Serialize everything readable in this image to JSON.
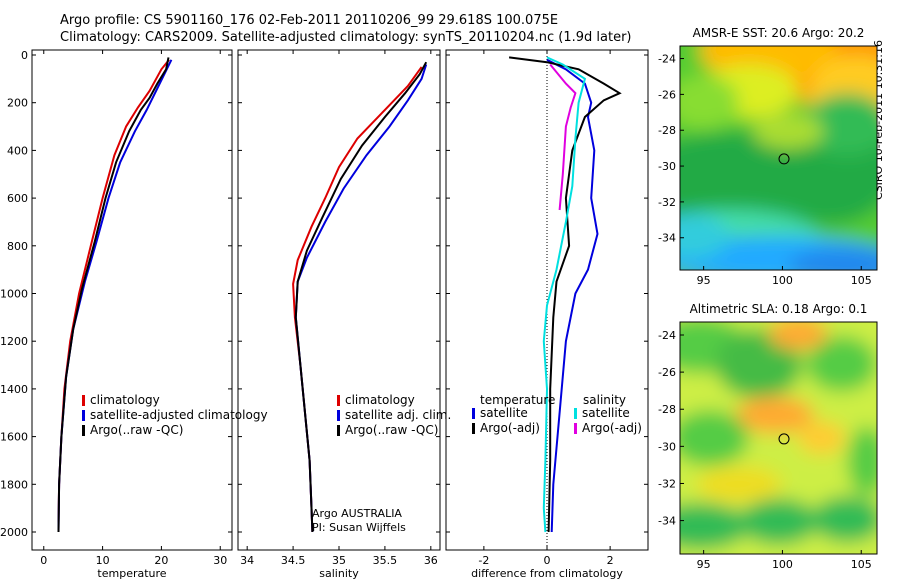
{
  "header": {
    "line1": "Argo profile: CS 5901160_176 02-Feb-2011 20110206_99 29.618S 100.075E",
    "line2": "Climatology: CARS2009. Satellite-adjusted climatology: synTS_20110204.nc (1.9d later)"
  },
  "footer_stamp": "CSIRO 10-Feb-2011 10:31:16",
  "colors": {
    "climatology": "#dd0000",
    "satellite": "#0000dd",
    "argo": "#000000",
    "sat_sal": "#00e0e0",
    "argo_sal": "#e000e0"
  },
  "chart_data": [
    {
      "type": "line",
      "id": "temperature",
      "xlabel": "temperature",
      "ylabel": "",
      "xlim": [
        -2,
        32
      ],
      "ylim": [
        2050,
        -30
      ],
      "xticks": [
        0,
        10,
        20,
        30
      ],
      "yticks": [
        0,
        200,
        400,
        600,
        800,
        1000,
        1200,
        1400,
        1600,
        1800,
        2000
      ],
      "legend": [
        "climatology",
        "satellite-adjusted climatology",
        "Argo(..raw -QC)"
      ],
      "series": [
        {
          "name": "climatology",
          "color": "#dd0000",
          "points": [
            [
              21.3,
              20
            ],
            [
              20,
              60
            ],
            [
              18,
              150
            ],
            [
              16,
              220
            ],
            [
              14,
              300
            ],
            [
              12,
              420
            ],
            [
              10,
              600
            ],
            [
              8,
              800
            ],
            [
              6,
              1000
            ],
            [
              4.5,
              1200
            ],
            [
              3.5,
              1400
            ],
            [
              3,
              1600
            ],
            [
              2.6,
              1800
            ],
            [
              2.5,
              1960
            ]
          ]
        },
        {
          "name": "satellite-adjusted climatology",
          "color": "#0000dd",
          "points": [
            [
              21.7,
              20
            ],
            [
              20.5,
              80
            ],
            [
              19.5,
              130
            ],
            [
              17.5,
              230
            ],
            [
              15.5,
              320
            ],
            [
              13,
              450
            ],
            [
              11,
              600
            ],
            [
              9,
              780
            ],
            [
              7,
              950
            ],
            [
              5,
              1150
            ],
            [
              3.8,
              1350
            ],
            [
              3,
              1600
            ],
            [
              2.6,
              1800
            ],
            [
              2.5,
              2000
            ]
          ]
        },
        {
          "name": "Argo(..raw -QC)",
          "color": "#000000",
          "points": [
            [
              21.2,
              10
            ],
            [
              20.8,
              60
            ],
            [
              19.3,
              120
            ],
            [
              18,
              180
            ],
            [
              16.5,
              230
            ],
            [
              14.5,
              320
            ],
            [
              12.3,
              450
            ],
            [
              10.5,
              600
            ],
            [
              8.7,
              780
            ],
            [
              6.5,
              980
            ],
            [
              5,
              1150
            ],
            [
              3.8,
              1350
            ],
            [
              3,
              1600
            ],
            [
              2.6,
              1800
            ],
            [
              2.5,
              2000
            ]
          ]
        }
      ]
    },
    {
      "type": "line",
      "id": "salinity",
      "xlabel": "salinity",
      "ylabel": "",
      "xlim": [
        33.9,
        36.1
      ],
      "ylim": [
        2050,
        -30
      ],
      "xticks": [
        34,
        34.5,
        35,
        35.5,
        36
      ],
      "legend": [
        "climatology",
        "satellite adj. clim.",
        "Argo(..raw -QC)"
      ],
      "note": [
        "Argo AUSTRALIA",
        "PI: Susan Wijffels"
      ],
      "series": [
        {
          "name": "climatology",
          "color": "#dd0000",
          "points": [
            [
              35.9,
              50
            ],
            [
              35.75,
              130
            ],
            [
              35.5,
              230
            ],
            [
              35.2,
              350
            ],
            [
              35,
              470
            ],
            [
              34.85,
              600
            ],
            [
              34.7,
              720
            ],
            [
              34.55,
              860
            ],
            [
              34.5,
              960
            ],
            [
              34.52,
              1100
            ],
            [
              34.58,
              1300
            ],
            [
              34.63,
              1500
            ],
            [
              34.68,
              1700
            ],
            [
              34.7,
              1900
            ],
            [
              34.71,
              2000
            ]
          ]
        },
        {
          "name": "satellite adj. clim.",
          "color": "#0000dd",
          "points": [
            [
              35.95,
              40
            ],
            [
              35.9,
              100
            ],
            [
              35.75,
              190
            ],
            [
              35.55,
              300
            ],
            [
              35.3,
              420
            ],
            [
              35.05,
              560
            ],
            [
              34.85,
              700
            ],
            [
              34.65,
              850
            ],
            [
              34.55,
              950
            ],
            [
              34.53,
              1100
            ],
            [
              34.58,
              1300
            ],
            [
              34.63,
              1500
            ],
            [
              34.68,
              1700
            ],
            [
              34.7,
              1900
            ],
            [
              34.71,
              2000
            ]
          ]
        },
        {
          "name": "Argo(..raw -QC)",
          "color": "#000000",
          "points": [
            [
              35.95,
              30
            ],
            [
              35.88,
              80
            ],
            [
              35.72,
              160
            ],
            [
              35.5,
              260
            ],
            [
              35.25,
              380
            ],
            [
              35.02,
              520
            ],
            [
              34.82,
              680
            ],
            [
              34.65,
              820
            ],
            [
              34.55,
              950
            ],
            [
              34.53,
              1100
            ],
            [
              34.58,
              1300
            ],
            [
              34.63,
              1500
            ],
            [
              34.68,
              1700
            ],
            [
              34.7,
              1900
            ],
            [
              34.71,
              2000
            ]
          ]
        }
      ]
    },
    {
      "type": "line",
      "id": "difference",
      "xlabel": "difference from climatology",
      "ylabel": "",
      "xlim": [
        -3.2,
        3.2
      ],
      "ylim": [
        2050,
        -30
      ],
      "xticks": [
        -2,
        0,
        2
      ],
      "legend_groups": [
        {
          "title": "temperature",
          "entries": [
            "satellite",
            "Argo(-adj)"
          ]
        },
        {
          "title": "salinity",
          "entries": [
            "satellite",
            "Argo(-adj)"
          ]
        }
      ],
      "series": [
        {
          "name": "temperature satellite",
          "color": "#0000dd",
          "points": [
            [
              0,
              20
            ],
            [
              0.6,
              60
            ],
            [
              1.2,
              120
            ],
            [
              1.4,
              200
            ],
            [
              1.3,
              260
            ],
            [
              1.5,
              400
            ],
            [
              1.4,
              600
            ],
            [
              1.6,
              750
            ],
            [
              1.3,
              900
            ],
            [
              0.9,
              1000
            ],
            [
              0.6,
              1200
            ],
            [
              0.4,
              1500
            ],
            [
              0.2,
              1800
            ],
            [
              0.15,
              2000
            ]
          ]
        },
        {
          "name": "temperature Argo(-adj)",
          "color": "#000000",
          "points": [
            [
              -1.2,
              10
            ],
            [
              0,
              30
            ],
            [
              1,
              60
            ],
            [
              1.8,
              120
            ],
            [
              2.3,
              160
            ],
            [
              1.8,
              190
            ],
            [
              1.2,
              260
            ],
            [
              0.8,
              400
            ],
            [
              0.6,
              600
            ],
            [
              0.7,
              800
            ],
            [
              0.3,
              950
            ],
            [
              0.2,
              1100
            ],
            [
              0.1,
              1400
            ],
            [
              0.1,
              1700
            ],
            [
              0.05,
              2000
            ]
          ]
        },
        {
          "name": "salinity satellite",
          "color": "#00e0e0",
          "points": [
            [
              0,
              10
            ],
            [
              0.5,
              40
            ],
            [
              1.2,
              100
            ],
            [
              1,
              200
            ],
            [
              0.9,
              350
            ],
            [
              0.8,
              550
            ],
            [
              0.6,
              700
            ],
            [
              0.3,
              900
            ],
            [
              0,
              1050
            ],
            [
              -0.1,
              1200
            ],
            [
              0,
              1400
            ],
            [
              -0.05,
              1700
            ],
            [
              -0.1,
              1900
            ],
            [
              -0.05,
              2000
            ]
          ]
        },
        {
          "name": "salinity Argo(-adj)",
          "color": "#e000e0",
          "points": [
            [
              0.1,
              40
            ],
            [
              0.6,
              120
            ],
            [
              0.9,
              160
            ],
            [
              0.75,
              220
            ],
            [
              0.6,
              300
            ],
            [
              0.5,
              500
            ],
            [
              0.4,
              650
            ]
          ]
        }
      ]
    },
    {
      "type": "heatmap",
      "id": "sst_map",
      "title": "AMSR-E SST: 20.6 Argo: 20.2",
      "xticks": [
        95,
        100,
        105
      ],
      "yticks": [
        -24,
        -26,
        -28,
        -30,
        -32,
        -34
      ],
      "xlim": [
        93.5,
        106
      ],
      "ylim": [
        -35.8,
        -23.3
      ],
      "marker": [
        100.1,
        -29.6
      ]
    },
    {
      "type": "heatmap",
      "id": "sla_map",
      "title": "Altimetric SLA: 0.18 Argo: 0.1",
      "xticks": [
        95,
        100,
        105
      ],
      "yticks": [
        -24,
        -26,
        -28,
        -30,
        -32,
        -34
      ],
      "xlim": [
        93.5,
        106
      ],
      "ylim": [
        -35.8,
        -23.3
      ],
      "marker": [
        100.1,
        -29.6
      ]
    }
  ]
}
